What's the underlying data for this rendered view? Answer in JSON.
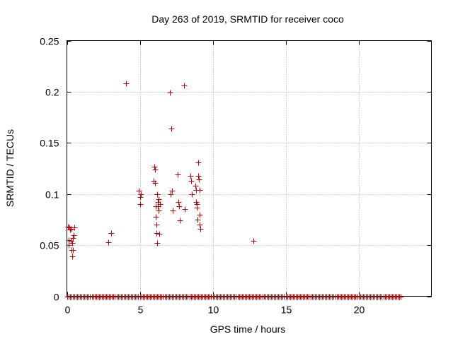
{
  "chart_data": {
    "type": "scatter",
    "title": "Day 263 of 2019, SRMTID for receiver coco",
    "xlabel": "GPS time / hours",
    "ylabel": "SRMTID / TECUs",
    "xlim": [
      0,
      25
    ],
    "ylim": [
      0,
      0.25
    ],
    "grid": true,
    "x_ticks": [
      0,
      5,
      10,
      15,
      20
    ],
    "x_tick_labels": [
      "0",
      "5",
      "10",
      "15",
      "20"
    ],
    "y_ticks": [
      0,
      0.05,
      0.1,
      0.15,
      0.2,
      0.25
    ],
    "y_tick_labels": [
      "0",
      "0.05",
      "0.1",
      "0.15",
      "0.2",
      "0.25"
    ],
    "marker": "+",
    "color": "#cc0000",
    "zero_baseline": {
      "start": 0.0,
      "end": 22.85,
      "step": 0.1,
      "y": 0
    },
    "series": [
      {
        "name": "SRMTID",
        "x": [
          0.05,
          0.1,
          0.12,
          0.18,
          0.2,
          0.28,
          0.3,
          0.32,
          0.35,
          0.38,
          0.4,
          0.42,
          0.45,
          0.5,
          2.85,
          3.05,
          4.05,
          4.95,
          5.0,
          5.02,
          5.05,
          5.95,
          6.0,
          6.02,
          6.05,
          6.08,
          6.1,
          6.12,
          6.15,
          6.18,
          6.2,
          6.22,
          6.25,
          6.28,
          6.3,
          6.35,
          6.4,
          7.05,
          7.1,
          7.15,
          7.2,
          7.25,
          7.6,
          7.65,
          7.7,
          7.75,
          8.05,
          8.1,
          8.45,
          8.5,
          8.55,
          8.8,
          8.85,
          8.88,
          8.9,
          8.92,
          8.95,
          9.0,
          9.02,
          9.05,
          9.08,
          9.1,
          9.12,
          9.15,
          12.8
        ],
        "y": [
          0.068,
          0.055,
          0.05,
          0.067,
          0.065,
          0.054,
          0.066,
          0.045,
          0.052,
          0.039,
          0.045,
          0.057,
          0.06,
          0.067,
          0.053,
          0.062,
          0.208,
          0.103,
          0.097,
          0.09,
          0.1,
          0.113,
          0.127,
          0.124,
          0.111,
          0.088,
          0.078,
          0.07,
          0.062,
          0.052,
          0.1,
          0.092,
          0.088,
          0.084,
          0.095,
          0.061,
          0.09,
          0.199,
          0.1,
          0.164,
          0.103,
          0.084,
          0.119,
          0.092,
          0.088,
          0.074,
          0.206,
          0.085,
          0.118,
          0.113,
          0.1,
          0.108,
          0.104,
          0.092,
          0.087,
          0.09,
          0.075,
          0.131,
          0.118,
          0.114,
          0.104,
          0.08,
          0.07,
          0.066,
          0.054
        ]
      }
    ]
  }
}
